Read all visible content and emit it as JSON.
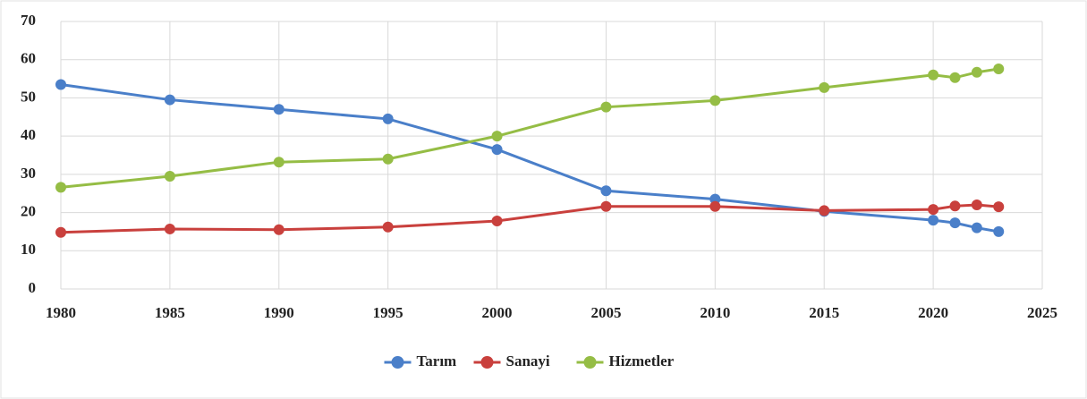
{
  "chart_data": {
    "type": "line",
    "x": [
      1980,
      1985,
      1990,
      1995,
      2000,
      2005,
      2010,
      2015,
      2020,
      2021,
      2022,
      2023
    ],
    "series": [
      {
        "name": "Tarım",
        "color": "#4a7fc9",
        "values": [
          53.5,
          49.5,
          47,
          44.5,
          36.5,
          25.7,
          23.5,
          20.3,
          18,
          17.3,
          16,
          15
        ]
      },
      {
        "name": "Sanayi",
        "color": "#c9403d",
        "values": [
          14.8,
          15.7,
          15.5,
          16.2,
          17.8,
          21.6,
          21.6,
          20.5,
          20.8,
          21.7,
          22,
          21.5
        ]
      },
      {
        "name": "Hizmetler",
        "color": "#95bd45",
        "values": [
          26.6,
          29.5,
          33.2,
          34,
          40,
          47.6,
          49.3,
          52.7,
          56,
          55.3,
          56.7,
          57.6
        ]
      }
    ],
    "xlim": [
      1980,
      2025
    ],
    "xticks": [
      1980,
      1985,
      1990,
      1995,
      2000,
      2005,
      2010,
      2015,
      2020,
      2025
    ],
    "ylim": [
      0,
      70
    ],
    "yticks": [
      0,
      10,
      20,
      30,
      40,
      50,
      60,
      70
    ],
    "grid": true,
    "legend": "bottom"
  }
}
